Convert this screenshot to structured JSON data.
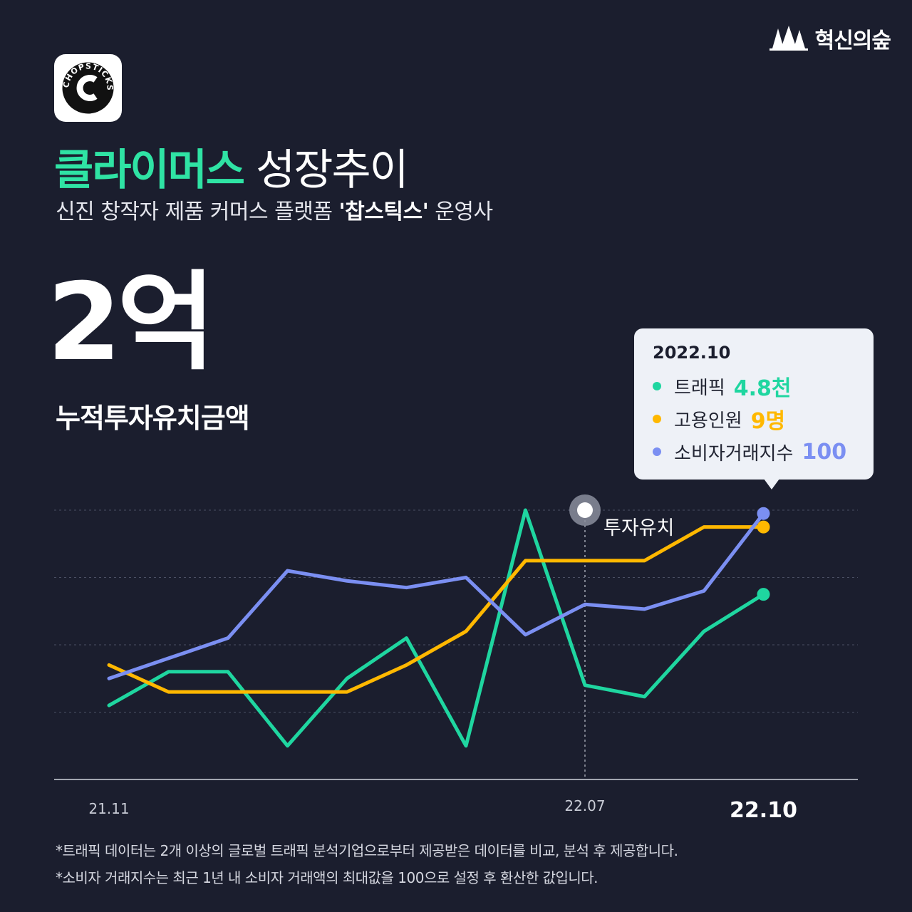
{
  "brand": {
    "name": "혁신의숲"
  },
  "logo": {
    "text": "CHOPSTICKS"
  },
  "header": {
    "title_accent": "클라이머스",
    "title_rest": " 성장추이",
    "subtitle_pre": "신진 창작자 제품 커머스 플랫폼 ",
    "subtitle_bold": "'찹스틱스'",
    "subtitle_post": " 운영사"
  },
  "metric": {
    "value": "2억",
    "label": "누적투자유치금액"
  },
  "tooltip": {
    "date": "2022.10",
    "rows": [
      {
        "name": "트래픽",
        "value": "4.8천",
        "color": "#1fd6a0"
      },
      {
        "name": "고용인원",
        "value": "9명",
        "color": "#ffb800"
      },
      {
        "name": "소비자거래지수",
        "value": "100",
        "color": "#7b8ff2"
      }
    ]
  },
  "chart_data": {
    "type": "line",
    "x": [
      "21.11",
      "21.12",
      "22.01",
      "22.02",
      "22.03",
      "22.04",
      "22.05",
      "22.06",
      "22.07",
      "22.08",
      "22.09",
      "22.10"
    ],
    "tick_labels": {
      "first": "21.11",
      "marker": "22.07",
      "last": "22.10"
    },
    "annotation": {
      "x": "22.07",
      "label": "투자유치"
    },
    "grid": true,
    "series": [
      {
        "name": "트래픽",
        "color": "#1fd6a0",
        "values": [
          11,
          16,
          16,
          5,
          15,
          21,
          5,
          40,
          14,
          12.3,
          22,
          27.5
        ]
      },
      {
        "name": "고용인원",
        "color": "#ffb800",
        "values": [
          17,
          13,
          13,
          13,
          13,
          17,
          22,
          32.5,
          32.5,
          32.5,
          37.5,
          37.5
        ]
      },
      {
        "name": "소비자거래지수",
        "color": "#7b8ff2",
        "values": [
          15,
          18,
          21,
          31,
          29.5,
          28.5,
          30,
          21.5,
          26,
          25.3,
          28,
          39.5
        ]
      }
    ]
  },
  "footnotes": [
    "*트래픽 데이터는 2개 이상의 글로벌 트래픽 분석기업으로부터 제공받은 데이터를 비교, 분석 후 제공합니다.",
    "*소비자 거래지수는 최근 1년 내 소비자 거래액의 최대값을 100으로 설정 후 환산한 값입니다."
  ]
}
